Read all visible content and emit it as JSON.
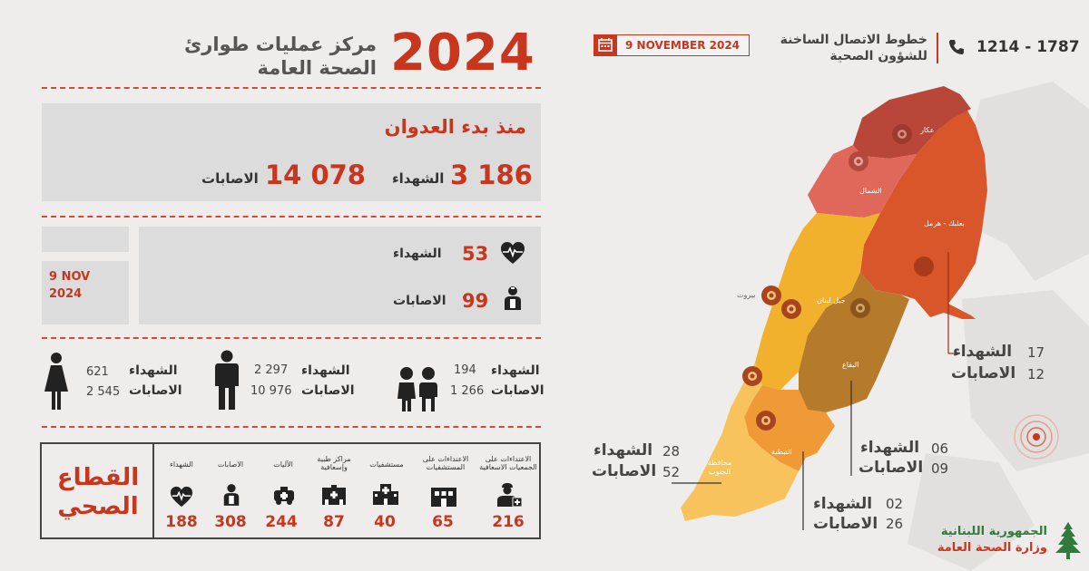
{
  "header": {
    "year": "2024",
    "title_line1": "مركز عمليات طوارئ",
    "title_line2": "الصحة العامة",
    "date_badge": "9 NOVEMBER 2024",
    "hotline_line1": "خطوط الاتصال الساخنة",
    "hotline_line2": "للشؤون الصحية",
    "hotline_numbers": "1214 - 1787"
  },
  "cumulative": {
    "heading": "منذ بدء العدوان",
    "deaths_value": "3 186",
    "deaths_label": "الشهداء",
    "injuries_value": "14 078",
    "injuries_label": "الاصابات"
  },
  "daily": {
    "date_line1": "9 NOV",
    "date_line2": "2024",
    "deaths_value": "53",
    "deaths_label": "الشهداء",
    "injuries_value": "99",
    "injuries_label": "الاصابات"
  },
  "demographics": [
    {
      "icon": "woman-icon",
      "deaths": "621",
      "injuries": "2 545",
      "deaths_label": "الشهداء",
      "injuries_label": "الاصابات"
    },
    {
      "icon": "man-icon",
      "deaths": "2 297",
      "injuries": "10 976",
      "deaths_label": "الشهداء",
      "injuries_label": "الاصابات"
    },
    {
      "icon": "children-icon",
      "deaths": "194",
      "injuries": "1 266",
      "deaths_label": "الشهداء",
      "injuries_label": "الاصابات"
    }
  ],
  "health_sector": {
    "title_line1": "القطاع",
    "title_line2": "الصحي",
    "items": [
      {
        "label": "الشهداء",
        "value": "188",
        "icon": "heart-pulse-icon"
      },
      {
        "label": "الاصابات",
        "value": "308",
        "icon": "injured-person-icon"
      },
      {
        "label": "الآليات",
        "value": "244",
        "icon": "ambulance-icon"
      },
      {
        "label": "مراكز طبية وإسعافية",
        "value": "87",
        "icon": "medical-center-icon"
      },
      {
        "label": "مستشفيات",
        "value": "40",
        "icon": "hospital-icon"
      },
      {
        "label": "الاعتداءات على المستشفيات",
        "value": "65",
        "icon": "damaged-building-icon"
      },
      {
        "label": "الاعتداءات على الجمعيات الاسعافية",
        "value": "216",
        "icon": "paramedic-icon"
      }
    ]
  },
  "map": {
    "regions": {
      "akkar": "عكار",
      "north": "الشمال",
      "baalbek": "بعلبك - هرمل",
      "beirut": "بيروت",
      "mount_lebanon": "جبل لبنان",
      "bekaa": "البقاع",
      "nabatieh": "النبطية",
      "south": "محافظة الجنوب"
    },
    "callouts": [
      {
        "region": "baalbek",
        "deaths": "17",
        "injuries": "12",
        "deaths_label": "الشهداء",
        "injuries_label": "الاصابات"
      },
      {
        "region": "south",
        "deaths": "28",
        "injuries": "52",
        "deaths_label": "الشهداء",
        "injuries_label": "الاصابات"
      },
      {
        "region": "bekaa",
        "deaths": "06",
        "injuries": "09",
        "deaths_label": "الشهداء",
        "injuries_label": "الاصابات"
      },
      {
        "region": "nabatieh",
        "deaths": "02",
        "injuries": "26",
        "deaths_label": "الشهداء",
        "injuries_label": "الاصابات"
      }
    ],
    "colors": {
      "akkar": "#b8473a",
      "north": "#e0685a",
      "baalbek": "#d9562a",
      "mount_lebanon": "#f2b12c",
      "bekaa": "#b57a2a",
      "nabatieh": "#ef9a36",
      "south": "#f8c35c"
    }
  },
  "footer": {
    "ministry_line1": "الجمهورية اللبنانية",
    "ministry_line2": "وزارة الصحة العامة"
  }
}
